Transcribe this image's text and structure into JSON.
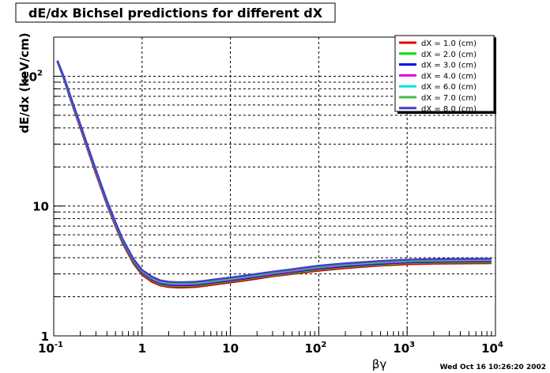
{
  "chart_data": {
    "type": "line",
    "title": "dE/dx Bichsel predictions for different dX",
    "xlabel": "βγ",
    "ylabel": "dE/dx (keV/cm)",
    "xscale": "log",
    "yscale": "log",
    "xlim": [
      0.1,
      10000
    ],
    "ylim": [
      1,
      200
    ],
    "grid": true,
    "legend_position": "top-right",
    "x_tick_labels": [
      {
        "value": 0.1,
        "base": "10",
        "exp": "-1"
      },
      {
        "value": 1,
        "base": "1",
        "exp": ""
      },
      {
        "value": 10,
        "base": "10",
        "exp": ""
      },
      {
        "value": 100,
        "base": "10",
        "exp": "2"
      },
      {
        "value": 1000,
        "base": "10",
        "exp": "3"
      },
      {
        "value": 10000,
        "base": "10",
        "exp": "4"
      }
    ],
    "y_tick_labels": [
      {
        "value": 1,
        "base": "1",
        "exp": ""
      },
      {
        "value": 10,
        "base": "10",
        "exp": ""
      },
      {
        "value": 100,
        "base": "10",
        "exp": "2"
      }
    ],
    "x": [
      0.11,
      0.13,
      0.16,
      0.2,
      0.25,
      0.3,
      0.4,
      0.5,
      0.6,
      0.8,
      1.0,
      1.3,
      1.6,
      2.0,
      2.5,
      3.0,
      4.0,
      5.0,
      7.0,
      10,
      15,
      20,
      30,
      50,
      100,
      200,
      500,
      1000,
      2000,
      5000,
      9000
    ],
    "series": [
      {
        "name": "dX =  1.0 (cm)",
        "color": "#e00000",
        "values": [
          130,
          96,
          62,
          40,
          25.5,
          17.8,
          10.3,
          7.0,
          5.2,
          3.6,
          2.95,
          2.6,
          2.45,
          2.38,
          2.36,
          2.36,
          2.38,
          2.42,
          2.5,
          2.58,
          2.68,
          2.76,
          2.88,
          3.0,
          3.18,
          3.33,
          3.48,
          3.56,
          3.6,
          3.62,
          3.63
        ]
      },
      {
        "name": "dX =  2.0 (cm)",
        "color": "#00e000",
        "values": [
          130,
          97,
          63,
          41,
          26,
          18.2,
          10.5,
          7.15,
          5.3,
          3.68,
          3.02,
          2.67,
          2.5,
          2.44,
          2.42,
          2.42,
          2.44,
          2.48,
          2.56,
          2.64,
          2.74,
          2.82,
          2.94,
          3.06,
          3.25,
          3.4,
          3.55,
          3.63,
          3.67,
          3.69,
          3.7
        ]
      },
      {
        "name": "dX =  3.0 (cm)",
        "color": "#0000e0",
        "values": [
          130,
          97.5,
          63.5,
          41.3,
          26.3,
          18.4,
          10.6,
          7.25,
          5.38,
          3.74,
          3.07,
          2.71,
          2.54,
          2.48,
          2.46,
          2.46,
          2.48,
          2.52,
          2.6,
          2.68,
          2.78,
          2.86,
          2.98,
          3.11,
          3.3,
          3.45,
          3.6,
          3.68,
          3.72,
          3.74,
          3.75
        ]
      },
      {
        "name": "dX =  4.0 (cm)",
        "color": "#e000e0",
        "values": [
          131,
          98,
          64,
          41.6,
          26.5,
          18.6,
          10.7,
          7.32,
          5.44,
          3.78,
          3.11,
          2.74,
          2.57,
          2.51,
          2.49,
          2.49,
          2.51,
          2.55,
          2.63,
          2.71,
          2.81,
          2.89,
          3.01,
          3.14,
          3.34,
          3.49,
          3.64,
          3.72,
          3.76,
          3.78,
          3.79
        ]
      },
      {
        "name": "dX =  6.0 (cm)",
        "color": "#00e0e0",
        "values": [
          131,
          98.5,
          64.5,
          42,
          26.8,
          18.8,
          10.85,
          7.42,
          5.52,
          3.84,
          3.16,
          2.79,
          2.62,
          2.55,
          2.53,
          2.53,
          2.55,
          2.59,
          2.67,
          2.75,
          2.86,
          2.94,
          3.06,
          3.2,
          3.4,
          3.55,
          3.7,
          3.78,
          3.82,
          3.84,
          3.85
        ]
      },
      {
        "name": "dX =  7.0 (cm)",
        "color": "#40c040",
        "values": [
          131,
          99,
          65,
          42.2,
          27,
          18.9,
          10.9,
          7.46,
          5.55,
          3.86,
          3.18,
          2.81,
          2.64,
          2.57,
          2.55,
          2.55,
          2.57,
          2.61,
          2.69,
          2.77,
          2.88,
          2.96,
          3.08,
          3.22,
          3.42,
          3.57,
          3.72,
          3.8,
          3.84,
          3.86,
          3.87
        ]
      },
      {
        "name": "dX =  8.0 (cm)",
        "color": "#4040d0",
        "values": [
          132,
          99.5,
          65.5,
          42.5,
          27.2,
          19.05,
          11.0,
          7.52,
          5.6,
          3.9,
          3.22,
          2.85,
          2.68,
          2.61,
          2.59,
          2.59,
          2.61,
          2.65,
          2.73,
          2.81,
          2.92,
          3.0,
          3.12,
          3.26,
          3.47,
          3.62,
          3.77,
          3.86,
          3.9,
          3.92,
          3.93
        ]
      }
    ]
  },
  "footer": {
    "timestamp": "Wed Oct 16 10:26:20 2002"
  }
}
